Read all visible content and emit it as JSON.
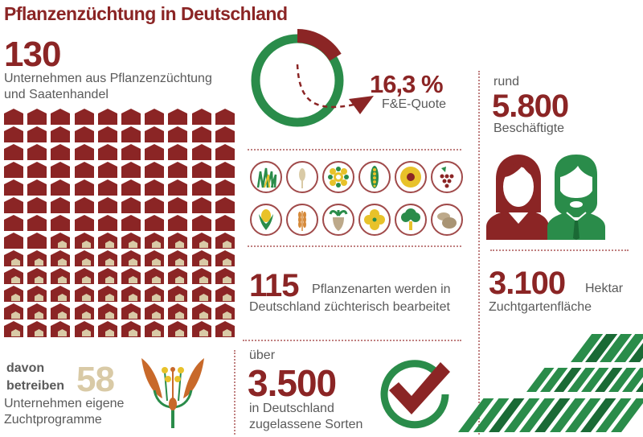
{
  "title": "Pflanzenzüchtung in Deutschland",
  "companies": {
    "number": "130",
    "line1": "Unternehmen aus Pflanzenzüchtung",
    "line2": "und Saatenhandel",
    "total": 130,
    "with_programs": 58
  },
  "breeding_programs": {
    "prefix1": "davon",
    "prefix2": "betreiben",
    "number": "58",
    "line1": "Unternehmen eigene",
    "line2": "Zuchtprogramme"
  },
  "rnd": {
    "value": "16,3 %",
    "label": "F&E-Quote",
    "percent": 16.3
  },
  "species": {
    "number": "115",
    "line1": "Pflanzenarten werden in",
    "line2": "Deutschland züchterisch bearbeitet",
    "icons": [
      "grass-icon",
      "rye-icon",
      "flower-icon",
      "pea-pod-icon",
      "sunflower-icon",
      "grape-icon",
      "corn-icon",
      "wheat-icon",
      "beet-icon",
      "rapeseed-icon",
      "broccoli-icon",
      "potato-icon"
    ]
  },
  "varieties": {
    "prefix": "über",
    "number": "3.500",
    "line1": "in Deutschland",
    "line2": "zugelassene Sorten"
  },
  "employees": {
    "prefix": "rund",
    "number": "5.800",
    "label": "Beschäftigte"
  },
  "area": {
    "number": "3.100",
    "unit": "Hektar",
    "label": "Zuchtgartenfläche"
  },
  "colors": {
    "red": "#8b2525",
    "green": "#2a8c4a",
    "dark_green": "#1a6a35",
    "beige": "#d9caa6",
    "gray": "#5a5a5a"
  }
}
